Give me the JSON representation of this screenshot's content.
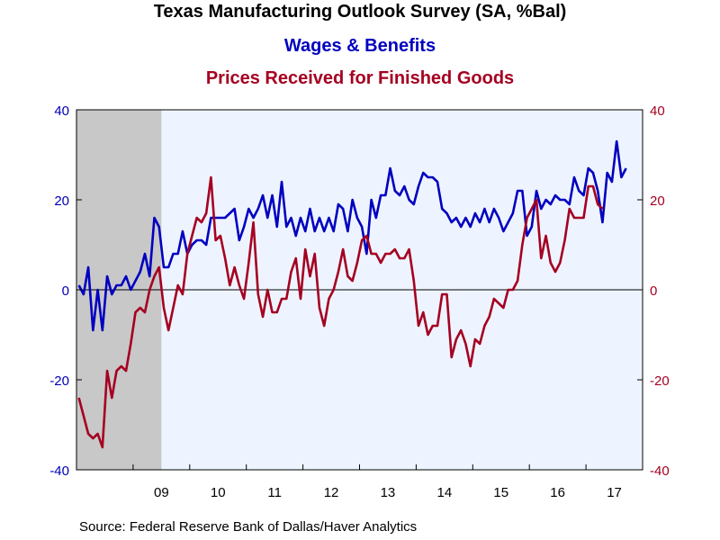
{
  "chart_data": {
    "type": "line",
    "title": "Texas Manufacturing Outlook Survey (SA, %Bal)",
    "source": "Source:  Federal Reserve Bank of Dallas/Haver Analytics",
    "x_tick_labels": [
      "09",
      "10",
      "11",
      "12",
      "13",
      "14",
      "15",
      "16",
      "17"
    ],
    "x_tick_years": [
      2009,
      2010,
      2011,
      2012,
      2013,
      2014,
      2015,
      2016,
      2017
    ],
    "x_range": [
      "2008-01",
      "2017-12"
    ],
    "y_left": {
      "range": [
        -40,
        40
      ],
      "ticks": [
        "-40",
        "-20",
        "0",
        "20",
        "40"
      ],
      "color": "#0000b4"
    },
    "y_right": {
      "range": [
        -40,
        40
      ],
      "ticks": [
        "-40",
        "-20",
        "0",
        "20",
        "40"
      ],
      "color": "#a50021"
    },
    "recession": {
      "start": "2008-01",
      "end": "2009-06",
      "color": "#c8c8c8"
    },
    "plot_background": "#eef4ff",
    "zero_line": true,
    "series": [
      {
        "name": "Wages & Benefits",
        "color": "#0000c0",
        "axis": "left",
        "start": "2008-01",
        "values": [
          1,
          -1,
          5,
          -9,
          0,
          -9,
          3,
          -1,
          1,
          1,
          3,
          0,
          2,
          4,
          8,
          3,
          16,
          14,
          5,
          5,
          8,
          8,
          13,
          8,
          10,
          11,
          11,
          10,
          16,
          16,
          16,
          16,
          17,
          18,
          11,
          14,
          18,
          16,
          18,
          21,
          16,
          21,
          14,
          24,
          14,
          16,
          12,
          16,
          13,
          18,
          13,
          16,
          13,
          16,
          13,
          19,
          18,
          13,
          20,
          16,
          14,
          8,
          20,
          16,
          21,
          21,
          27,
          22,
          21,
          23,
          20,
          19,
          23,
          26,
          25,
          25,
          24,
          18,
          17,
          15,
          16,
          14,
          16,
          14,
          17,
          15,
          18,
          15,
          18,
          16,
          13,
          15,
          17,
          22,
          22,
          12,
          14,
          22,
          18,
          20,
          19,
          21,
          20,
          20,
          19,
          25,
          22,
          21,
          27,
          26,
          22,
          15,
          26,
          24,
          33,
          25,
          27
        ],
        "label": "Wages & Benefits"
      },
      {
        "name": "Prices Received for Finished Goods",
        "color": "#a50021",
        "axis": "right",
        "start": "2008-01",
        "values": [
          -24,
          -28,
          -32,
          -33,
          -32,
          -35,
          -18,
          -24,
          -18,
          -17,
          -18,
          -12,
          -5,
          -4,
          -5,
          0,
          3,
          5,
          -4,
          -9,
          -4,
          1,
          -1,
          8,
          12,
          16,
          15,
          17,
          25,
          11,
          12,
          7,
          1,
          5,
          1,
          -2,
          6,
          15,
          -1,
          -6,
          0,
          -5,
          -5,
          -2,
          -2,
          4,
          7,
          -2,
          9,
          3,
          8,
          -4,
          -8,
          -2,
          0,
          4,
          9,
          3,
          2,
          6,
          11,
          12,
          8,
          8,
          6,
          8,
          8,
          9,
          7,
          7,
          9,
          2,
          -8,
          -5,
          -10,
          -8,
          -8,
          -1,
          -1,
          -15,
          -11,
          -9,
          -12,
          -17,
          -11,
          -12,
          -8,
          -6,
          -2,
          -3,
          -4,
          0,
          0,
          2,
          10,
          16,
          18,
          20,
          7,
          12,
          6,
          4,
          6,
          11,
          18,
          16,
          16,
          16,
          23,
          23,
          19,
          18
        ]
      }
    ]
  }
}
